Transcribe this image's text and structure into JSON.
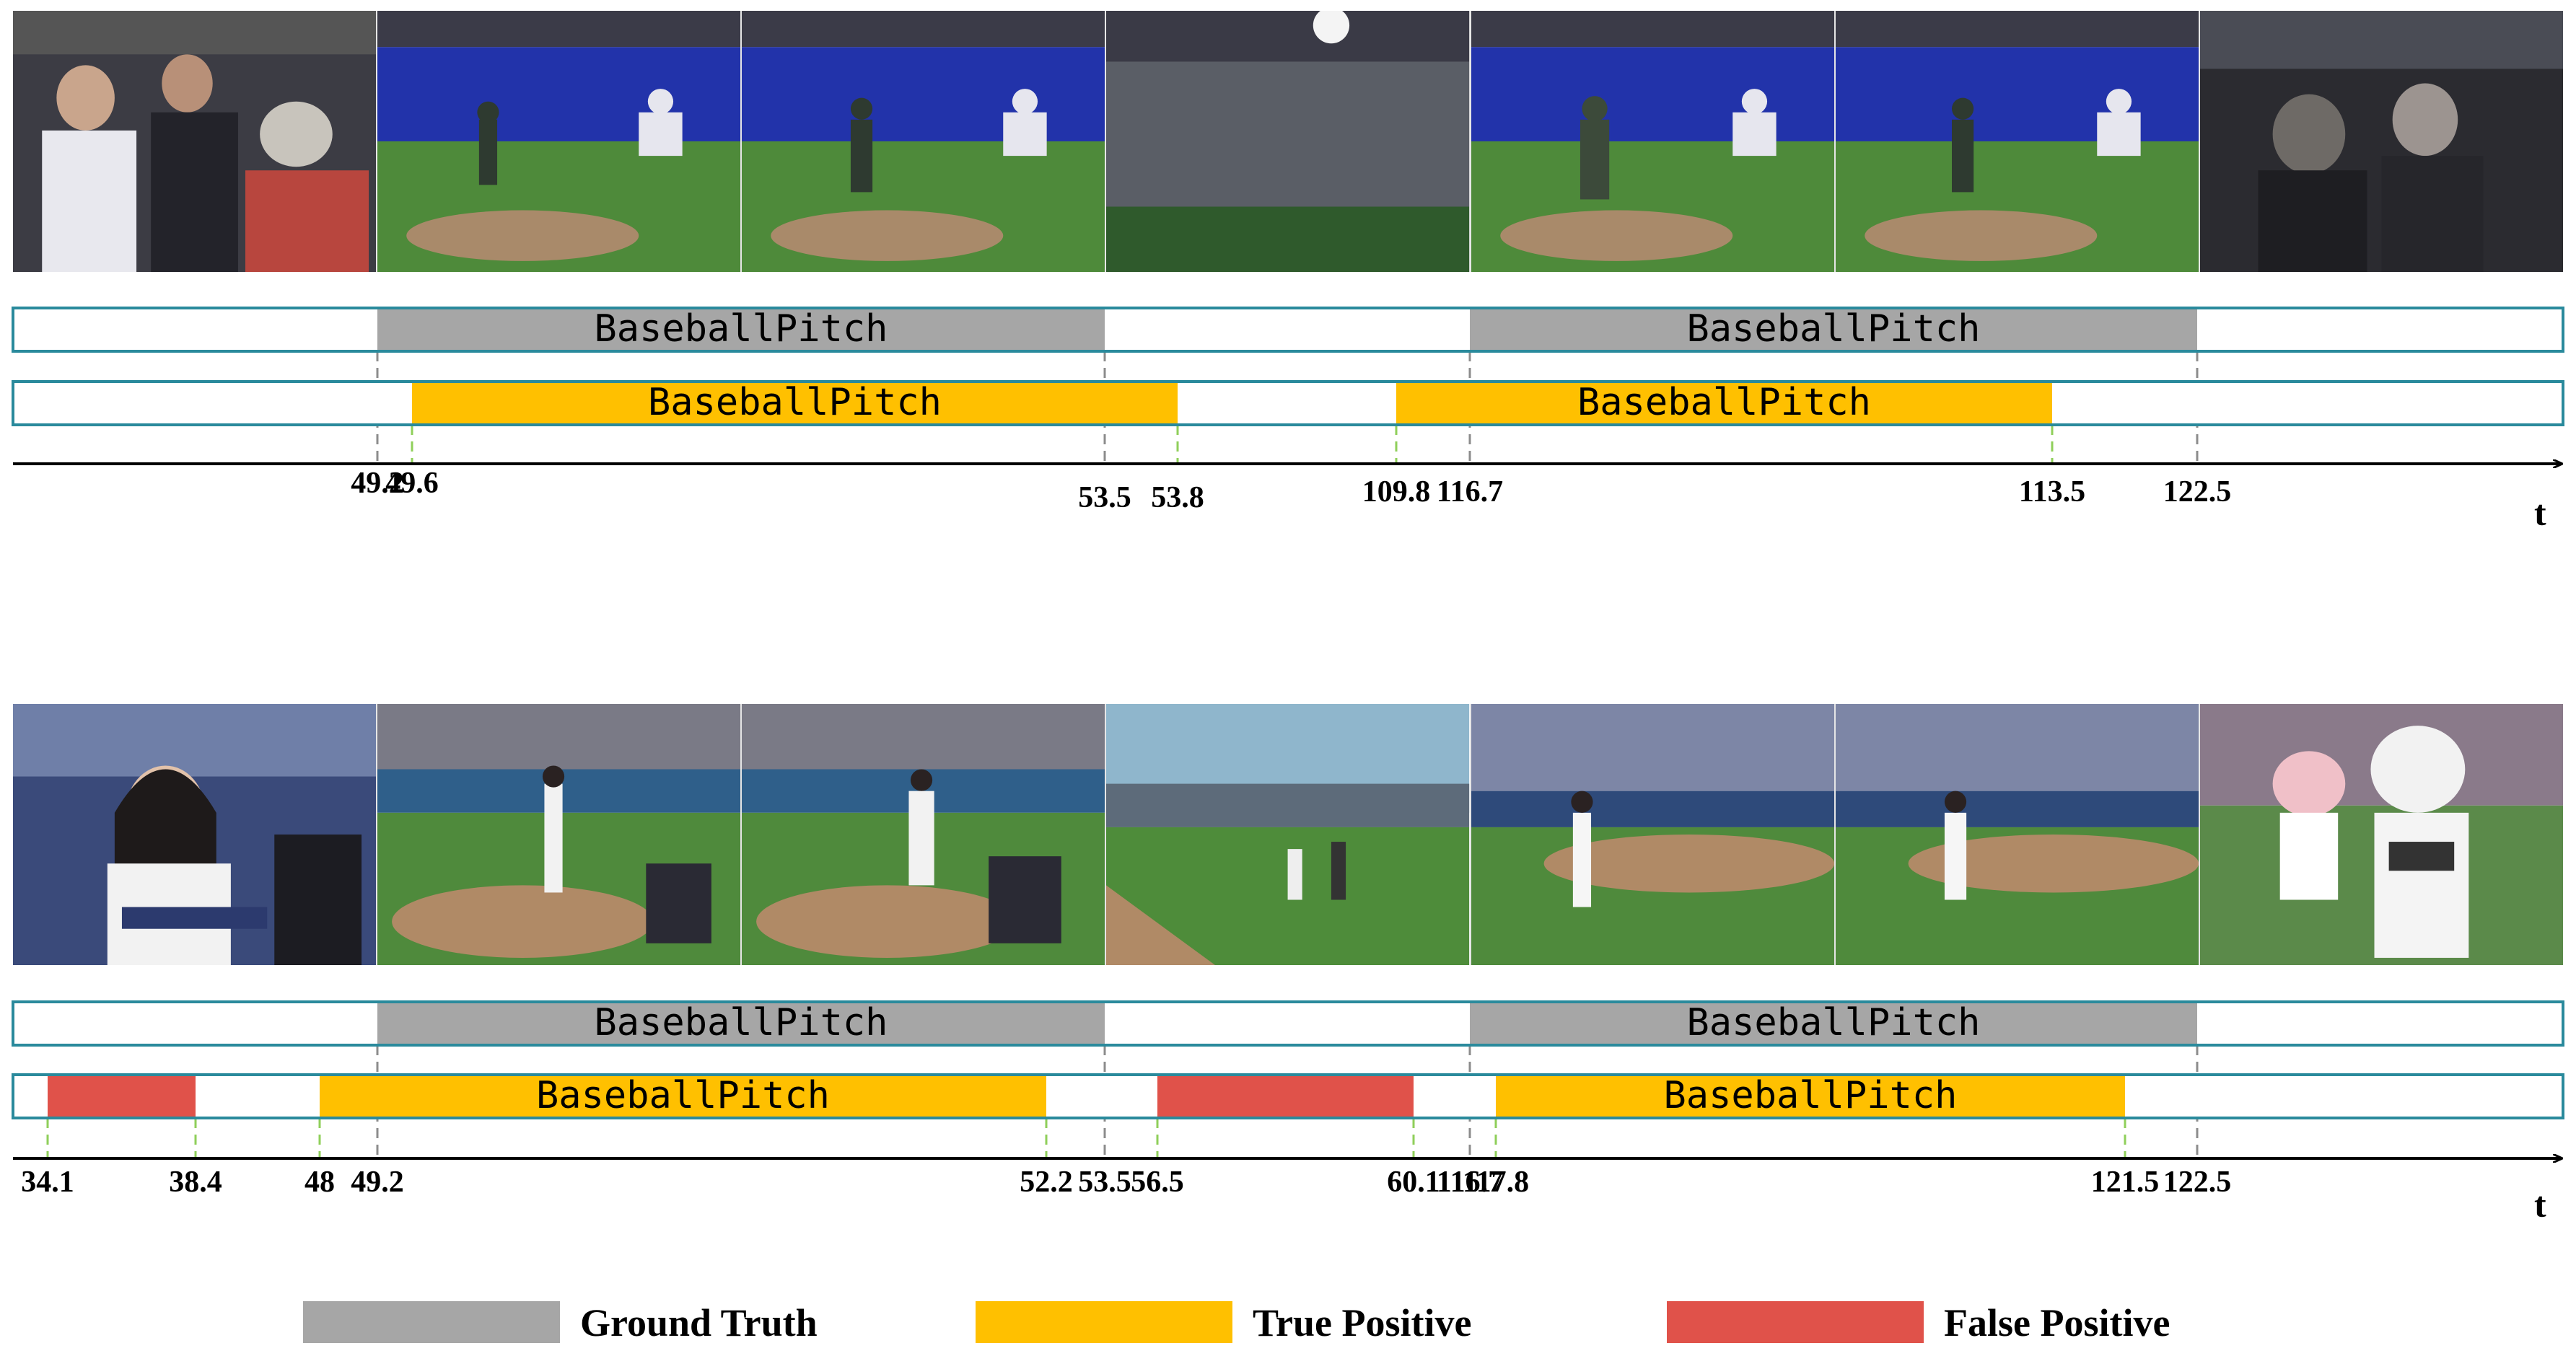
{
  "label_text": "BaseballPitch",
  "axis_symbol": "t",
  "colors": {
    "ground_truth": "#a6a6a6",
    "true_positive": "#ffc000",
    "false_positive": "#e0524a",
    "track_border": "#2a8a9c",
    "gt_guide": "#8c8c8c",
    "pred_guide": "#8fcf5a",
    "axis": "#000000"
  },
  "legend": [
    {
      "label": "Ground Truth",
      "color": "#a6a6a6"
    },
    {
      "label": "True Positive",
      "color": "#ffc000"
    },
    {
      "label": "False Positive",
      "color": "#e0524a"
    }
  ],
  "rows": [
    {
      "frame_icons": [
        "dugout-players-icon",
        "pitcher-mound-icon",
        "pitcher-mound-icon",
        "stadium-crowd-icon",
        "pitcher-mound-icon",
        "pitcher-mound-icon",
        "crowd-closeup-icon"
      ],
      "gt_segments": [
        {
          "start": 49.2,
          "end": 53.5,
          "label": "BaseballPitch"
        },
        {
          "start": 116.7,
          "end": 122.5,
          "label": "BaseballPitch"
        }
      ],
      "pred_segments": [
        {
          "start": 49.6,
          "end": 53.8,
          "label": "BaseballPitch",
          "kind": "tp"
        },
        {
          "start": 109.8,
          "end": 113.5,
          "label": "BaseballPitch",
          "kind": "tp"
        }
      ],
      "ticks": [
        "49.2",
        "49.6",
        "53.5",
        "53.8",
        "109.8",
        "116.7",
        "113.5",
        "122.5"
      ]
    },
    {
      "frame_icons": [
        "presenter-closeup-icon",
        "first-pitch-icon",
        "first-pitch-icon",
        "field-walk-icon",
        "ballpark-pitch-icon",
        "ballpark-pitch-icon",
        "mascot-icon"
      ],
      "gt_segments": [
        {
          "start": 49.2,
          "end": 53.5,
          "label": "BaseballPitch"
        },
        {
          "start": 116.7,
          "end": 122.5,
          "label": "BaseballPitch"
        }
      ],
      "pred_segments": [
        {
          "start": 34.1,
          "end": 38.4,
          "label": "",
          "kind": "fp"
        },
        {
          "start": 48,
          "end": 52.2,
          "label": "BaseballPitch",
          "kind": "tp"
        },
        {
          "start": 56.5,
          "end": 60.1,
          "label": "",
          "kind": "fp"
        },
        {
          "start": 117.8,
          "end": 121.5,
          "label": "BaseballPitch",
          "kind": "tp"
        }
      ],
      "ticks": [
        "34.1",
        "38.4",
        "48",
        "49.2",
        "52.2",
        "53.5",
        "56.5",
        "60.1",
        "116.7",
        "117.8",
        "121.5",
        "122.5"
      ]
    }
  ]
}
